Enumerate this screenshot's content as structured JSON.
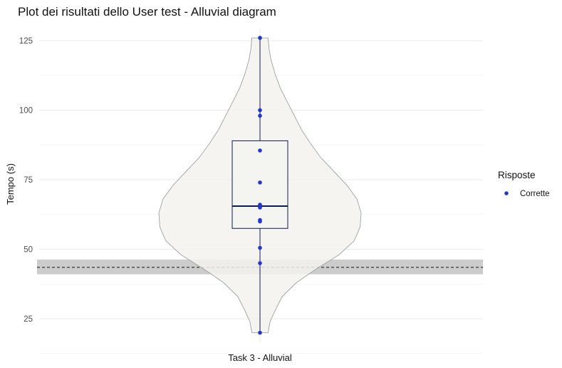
{
  "chart_data": {
    "type": "violin",
    "title": "Plot dei risultati dello User test - Alluvial diagram",
    "xlabel": "",
    "ylabel": "Tempo (s)",
    "categories": [
      "Task 3 - Alluvial"
    ],
    "ylim": [
      18,
      128
    ],
    "yticks": [
      25,
      50,
      75,
      100,
      125
    ],
    "grid": true,
    "points": [
      {
        "y": 126,
        "group": "Corrette"
      },
      {
        "y": 100,
        "group": "Corrette"
      },
      {
        "y": 98,
        "group": "Corrette"
      },
      {
        "y": 85.5,
        "group": "Corrette"
      },
      {
        "y": 74,
        "group": "Corrette"
      },
      {
        "y": 66,
        "group": "Corrette"
      },
      {
        "y": 65,
        "group": "Corrette"
      },
      {
        "y": 60.5,
        "group": "Corrette"
      },
      {
        "y": 60,
        "group": "Corrette"
      },
      {
        "y": 50.5,
        "group": "Corrette"
      },
      {
        "y": 45,
        "group": "Corrette"
      },
      {
        "y": 20,
        "group": "Corrette"
      }
    ],
    "boxplot": {
      "min": 20,
      "q1": 57.5,
      "median": 65.5,
      "q3": 89,
      "max": 126
    },
    "violin_density": [
      {
        "y": 20,
        "w": 0.08
      },
      {
        "y": 24,
        "w": 0.1
      },
      {
        "y": 28,
        "w": 0.15
      },
      {
        "y": 33,
        "w": 0.22
      },
      {
        "y": 38,
        "w": 0.36
      },
      {
        "y": 43,
        "w": 0.56
      },
      {
        "y": 48,
        "w": 0.78
      },
      {
        "y": 53,
        "w": 0.93
      },
      {
        "y": 58,
        "w": 0.99
      },
      {
        "y": 63,
        "w": 1.0
      },
      {
        "y": 68,
        "w": 0.96
      },
      {
        "y": 73,
        "w": 0.86
      },
      {
        "y": 78,
        "w": 0.73
      },
      {
        "y": 83,
        "w": 0.6
      },
      {
        "y": 88,
        "w": 0.5
      },
      {
        "y": 93,
        "w": 0.41
      },
      {
        "y": 98,
        "w": 0.34
      },
      {
        "y": 103,
        "w": 0.27
      },
      {
        "y": 108,
        "w": 0.2
      },
      {
        "y": 113,
        "w": 0.15
      },
      {
        "y": 118,
        "w": 0.11
      },
      {
        "y": 122,
        "w": 0.09
      },
      {
        "y": 126,
        "w": 0.08
      }
    ],
    "reference_line": {
      "y": 43.5,
      "band": [
        41,
        46.3
      ],
      "style": "dashed"
    },
    "legend": {
      "title": "Risposte",
      "entries": [
        {
          "label": "Corrette",
          "color": "#1f35d6"
        }
      ],
      "position": "right"
    },
    "colors": {
      "point": "#1f35d6",
      "box": "#0d1b4d",
      "violin_fill": "#f3f2ee",
      "violin_stroke": "#8a9a9a",
      "band": "#cccccc",
      "grid": "#ebebeb"
    }
  }
}
